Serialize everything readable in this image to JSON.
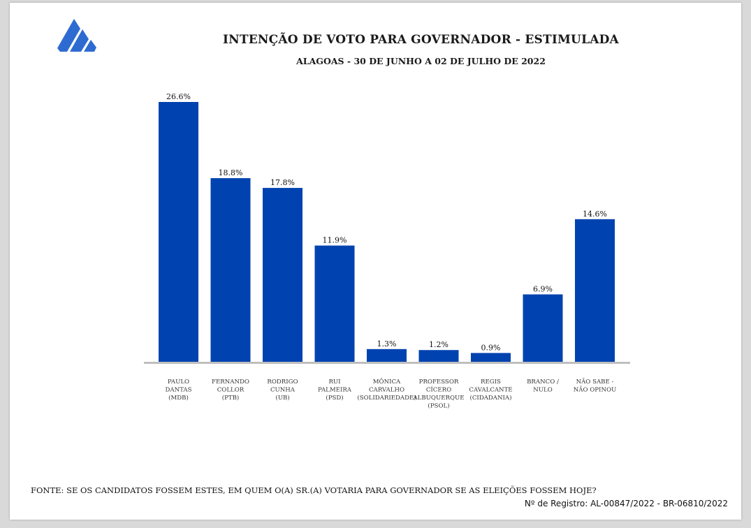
{
  "header": {
    "logo_icon": "stacked-chevrons-logo",
    "brand_color": "#2e6bd1"
  },
  "chart_data": {
    "type": "bar",
    "title": "INTENÇÃO DE VOTO PARA GOVERNADOR - ESTIMULADA",
    "subtitle": "ALAGOAS - 30 DE JUNHO A 02 DE JULHO DE 2022",
    "categories": [
      [
        "PAULO",
        "DANTAS",
        "(MDB)"
      ],
      [
        "FERNANDO",
        "COLLOR",
        "(PTB)"
      ],
      [
        "RODRIGO",
        "CUNHA",
        "(UB)"
      ],
      [
        "RUI",
        "PALMEIRA",
        "(PSD)"
      ],
      [
        "MÔNICA",
        "CARVALHO",
        "(SOLIDARIEDADE)"
      ],
      [
        "PROFESSOR",
        "CÍCERO",
        "ALBUQUERQUE",
        "(PSOL)"
      ],
      [
        "REGIS",
        "CAVALCANTE",
        "(CIDADANIA)"
      ],
      [
        "BRANCO /",
        "NULO"
      ],
      [
        "NÃO SABE  -",
        "NÃO OPINOU"
      ]
    ],
    "values": [
      26.6,
      18.8,
      17.8,
      11.9,
      1.3,
      1.2,
      0.9,
      6.9,
      14.6
    ],
    "value_labels": [
      "26.6%",
      "18.8%",
      "17.8%",
      "11.9%",
      "1.3%",
      "1.2%",
      "0.9%",
      "6.9%",
      "14.6%"
    ],
    "ylim": [
      0,
      26.6
    ],
    "xlabel": "",
    "ylabel": "",
    "grid": false,
    "bar_color": "#0043b0",
    "axis_color": "#bfbfbf"
  },
  "footer": {
    "source": "FONTE: SE OS CANDIDATOS FOSSEM ESTES, EM QUEM O(A) SR.(A) VOTARIA PARA GOVERNADOR SE AS ELEIÇÕES FOSSEM HOJE?",
    "registro": "Nº de Registro: AL-00847/2022 - BR-06810/2022"
  }
}
